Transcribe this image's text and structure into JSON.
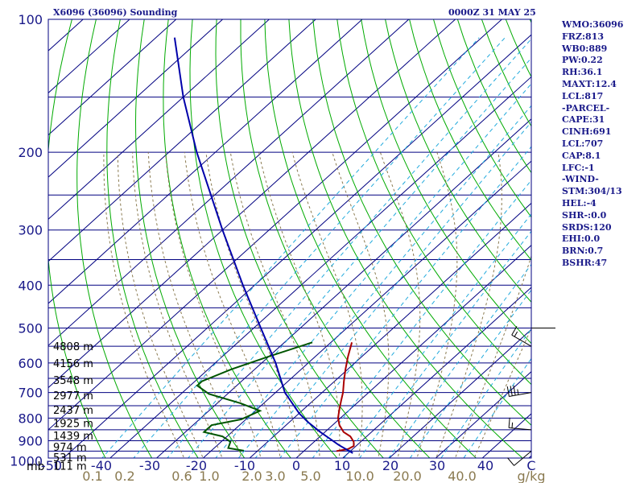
{
  "header": {
    "station": "X6096 (36096) Sounding",
    "time": "0000Z 31 MAY 25"
  },
  "side_panel": [
    "WMO:36096",
    "FRZ:813",
    "WB0:889",
    "PW:0.22",
    "RH:36.1",
    "MAXT:12.4",
    "LCL:817",
    "-PARCEL-",
    "CAPE:31",
    "CINH:691",
    "LCL:707",
    "CAP:8.1",
    "LFC:-1",
    "-WIND-",
    "STM:304/13",
    "HEL:-4",
    "SHR-:0.0",
    "SRDS:120",
    "EHI:0.0",
    "BRN:0.7",
    "BSHR:47"
  ],
  "colors": {
    "frame": "#000080",
    "isobar": "#000080",
    "isotherm": "#000080",
    "dry_adiabat": "#00aa00",
    "mixing_ratio": "#22aadd",
    "moist_adiabat": "#8a7a50",
    "temperature": "#aa0000",
    "dewpoint": "#005500",
    "parcel": "#0000aa",
    "axis_label": "#1a1a8a",
    "mixing_label": "#8a7a50"
  },
  "chart_data": {
    "type": "line",
    "chart_kind": "skew-T log-P sounding",
    "pressure_labels": [
      "100",
      "200",
      "300",
      "400",
      "500",
      "600",
      "700",
      "800",
      "900",
      "1000"
    ],
    "pressure_ticks": [
      100,
      200,
      300,
      400,
      500,
      600,
      700,
      800,
      900,
      1000
    ],
    "pressure_unit_label": "mb",
    "temperature_labels": [
      "-50",
      "-40",
      "-30",
      "-20",
      "-10",
      "0",
      "10",
      "20",
      "30",
      "40",
      "C"
    ],
    "temperature_ticks": [
      -50,
      -40,
      -30,
      -20,
      -10,
      0,
      10,
      20,
      30,
      40
    ],
    "mixing_ratio_labels": [
      "0.1",
      "0.2",
      "0.6",
      "1.0",
      "2.0",
      "3.0",
      "5.0",
      "10.0",
      "20.0",
      "40.0",
      "g/kg"
    ],
    "mixing_ratio_values": [
      0.1,
      0.2,
      0.6,
      1.0,
      2.0,
      3.0,
      5.0,
      10.0,
      20.0,
      40.0
    ],
    "plim": [
      100,
      1000
    ],
    "height_labels": [
      {
        "p": 550,
        "text": "4808 m"
      },
      {
        "p": 600,
        "text": "4156 m"
      },
      {
        "p": 655,
        "text": "3548 m"
      },
      {
        "p": 710,
        "text": "2977 m"
      },
      {
        "p": 765,
        "text": "2437 m"
      },
      {
        "p": 820,
        "text": "1925 m"
      },
      {
        "p": 875,
        "text": "1439 m"
      },
      {
        "p": 928,
        "text": "974 m"
      },
      {
        "p": 980,
        "text": "531 m"
      },
      {
        "p": 1025,
        "text": "111 m"
      }
    ],
    "series": [
      {
        "kind": "temperature",
        "points": [
          {
            "p": 539,
            "t": -15.5
          },
          {
            "p": 580,
            "t": -13.0
          },
          {
            "p": 620,
            "t": -10.5
          },
          {
            "p": 660,
            "t": -8.0
          },
          {
            "p": 700,
            "t": -5.5
          },
          {
            "p": 730,
            "t": -4.0
          },
          {
            "p": 760,
            "t": -2.5
          },
          {
            "p": 800,
            "t": -0.5
          },
          {
            "p": 830,
            "t": 1.5
          },
          {
            "p": 860,
            "t": 4.0
          },
          {
            "p": 880,
            "t": 6.5
          },
          {
            "p": 905,
            "t": 8.5
          },
          {
            "p": 925,
            "t": 9.5
          },
          {
            "p": 940,
            "t": 9.0
          },
          {
            "p": 950,
            "t": 7.0
          }
        ]
      },
      {
        "kind": "dewpoint",
        "points": [
          {
            "p": 539,
            "t": -24.0
          },
          {
            "p": 580,
            "t": -30.0
          },
          {
            "p": 620,
            "t": -35.0
          },
          {
            "p": 660,
            "t": -38.5
          },
          {
            "p": 675,
            "t": -38.5
          },
          {
            "p": 705,
            "t": -34.0
          },
          {
            "p": 740,
            "t": -25.0
          },
          {
            "p": 770,
            "t": -19.0
          },
          {
            "p": 805,
            "t": -21.0
          },
          {
            "p": 830,
            "t": -26.0
          },
          {
            "p": 860,
            "t": -26.0
          },
          {
            "p": 880,
            "t": -21.0
          },
          {
            "p": 905,
            "t": -18.0
          },
          {
            "p": 935,
            "t": -17.0
          },
          {
            "p": 948,
            "t": -13.0
          }
        ]
      },
      {
        "kind": "parcel",
        "points": [
          {
            "p": 960,
            "t": 11.0
          },
          {
            "p": 920,
            "t": 6.0
          },
          {
            "p": 860,
            "t": -1.0
          },
          {
            "p": 817,
            "t": -6.0
          },
          {
            "p": 780,
            "t": -10.0
          },
          {
            "p": 700,
            "t": -18.0
          },
          {
            "p": 600,
            "t": -27.0
          },
          {
            "p": 500,
            "t": -38.5
          },
          {
            "p": 400,
            "t": -52.5
          },
          {
            "p": 300,
            "t": -70.0
          },
          {
            "p": 200,
            "t": -94.0
          },
          {
            "p": 150,
            "t": -110.0
          },
          {
            "p": 110,
            "t": -126.0
          }
        ]
      }
    ],
    "wind_barbs": [
      {
        "p": 550,
        "dir": 300,
        "speed": 15
      },
      {
        "p": 700,
        "dir": 260,
        "speed": 35
      },
      {
        "p": 850,
        "dir": 275,
        "speed": 15
      },
      {
        "p": 950,
        "dir": 230,
        "speed": 10
      }
    ],
    "grid": true
  }
}
